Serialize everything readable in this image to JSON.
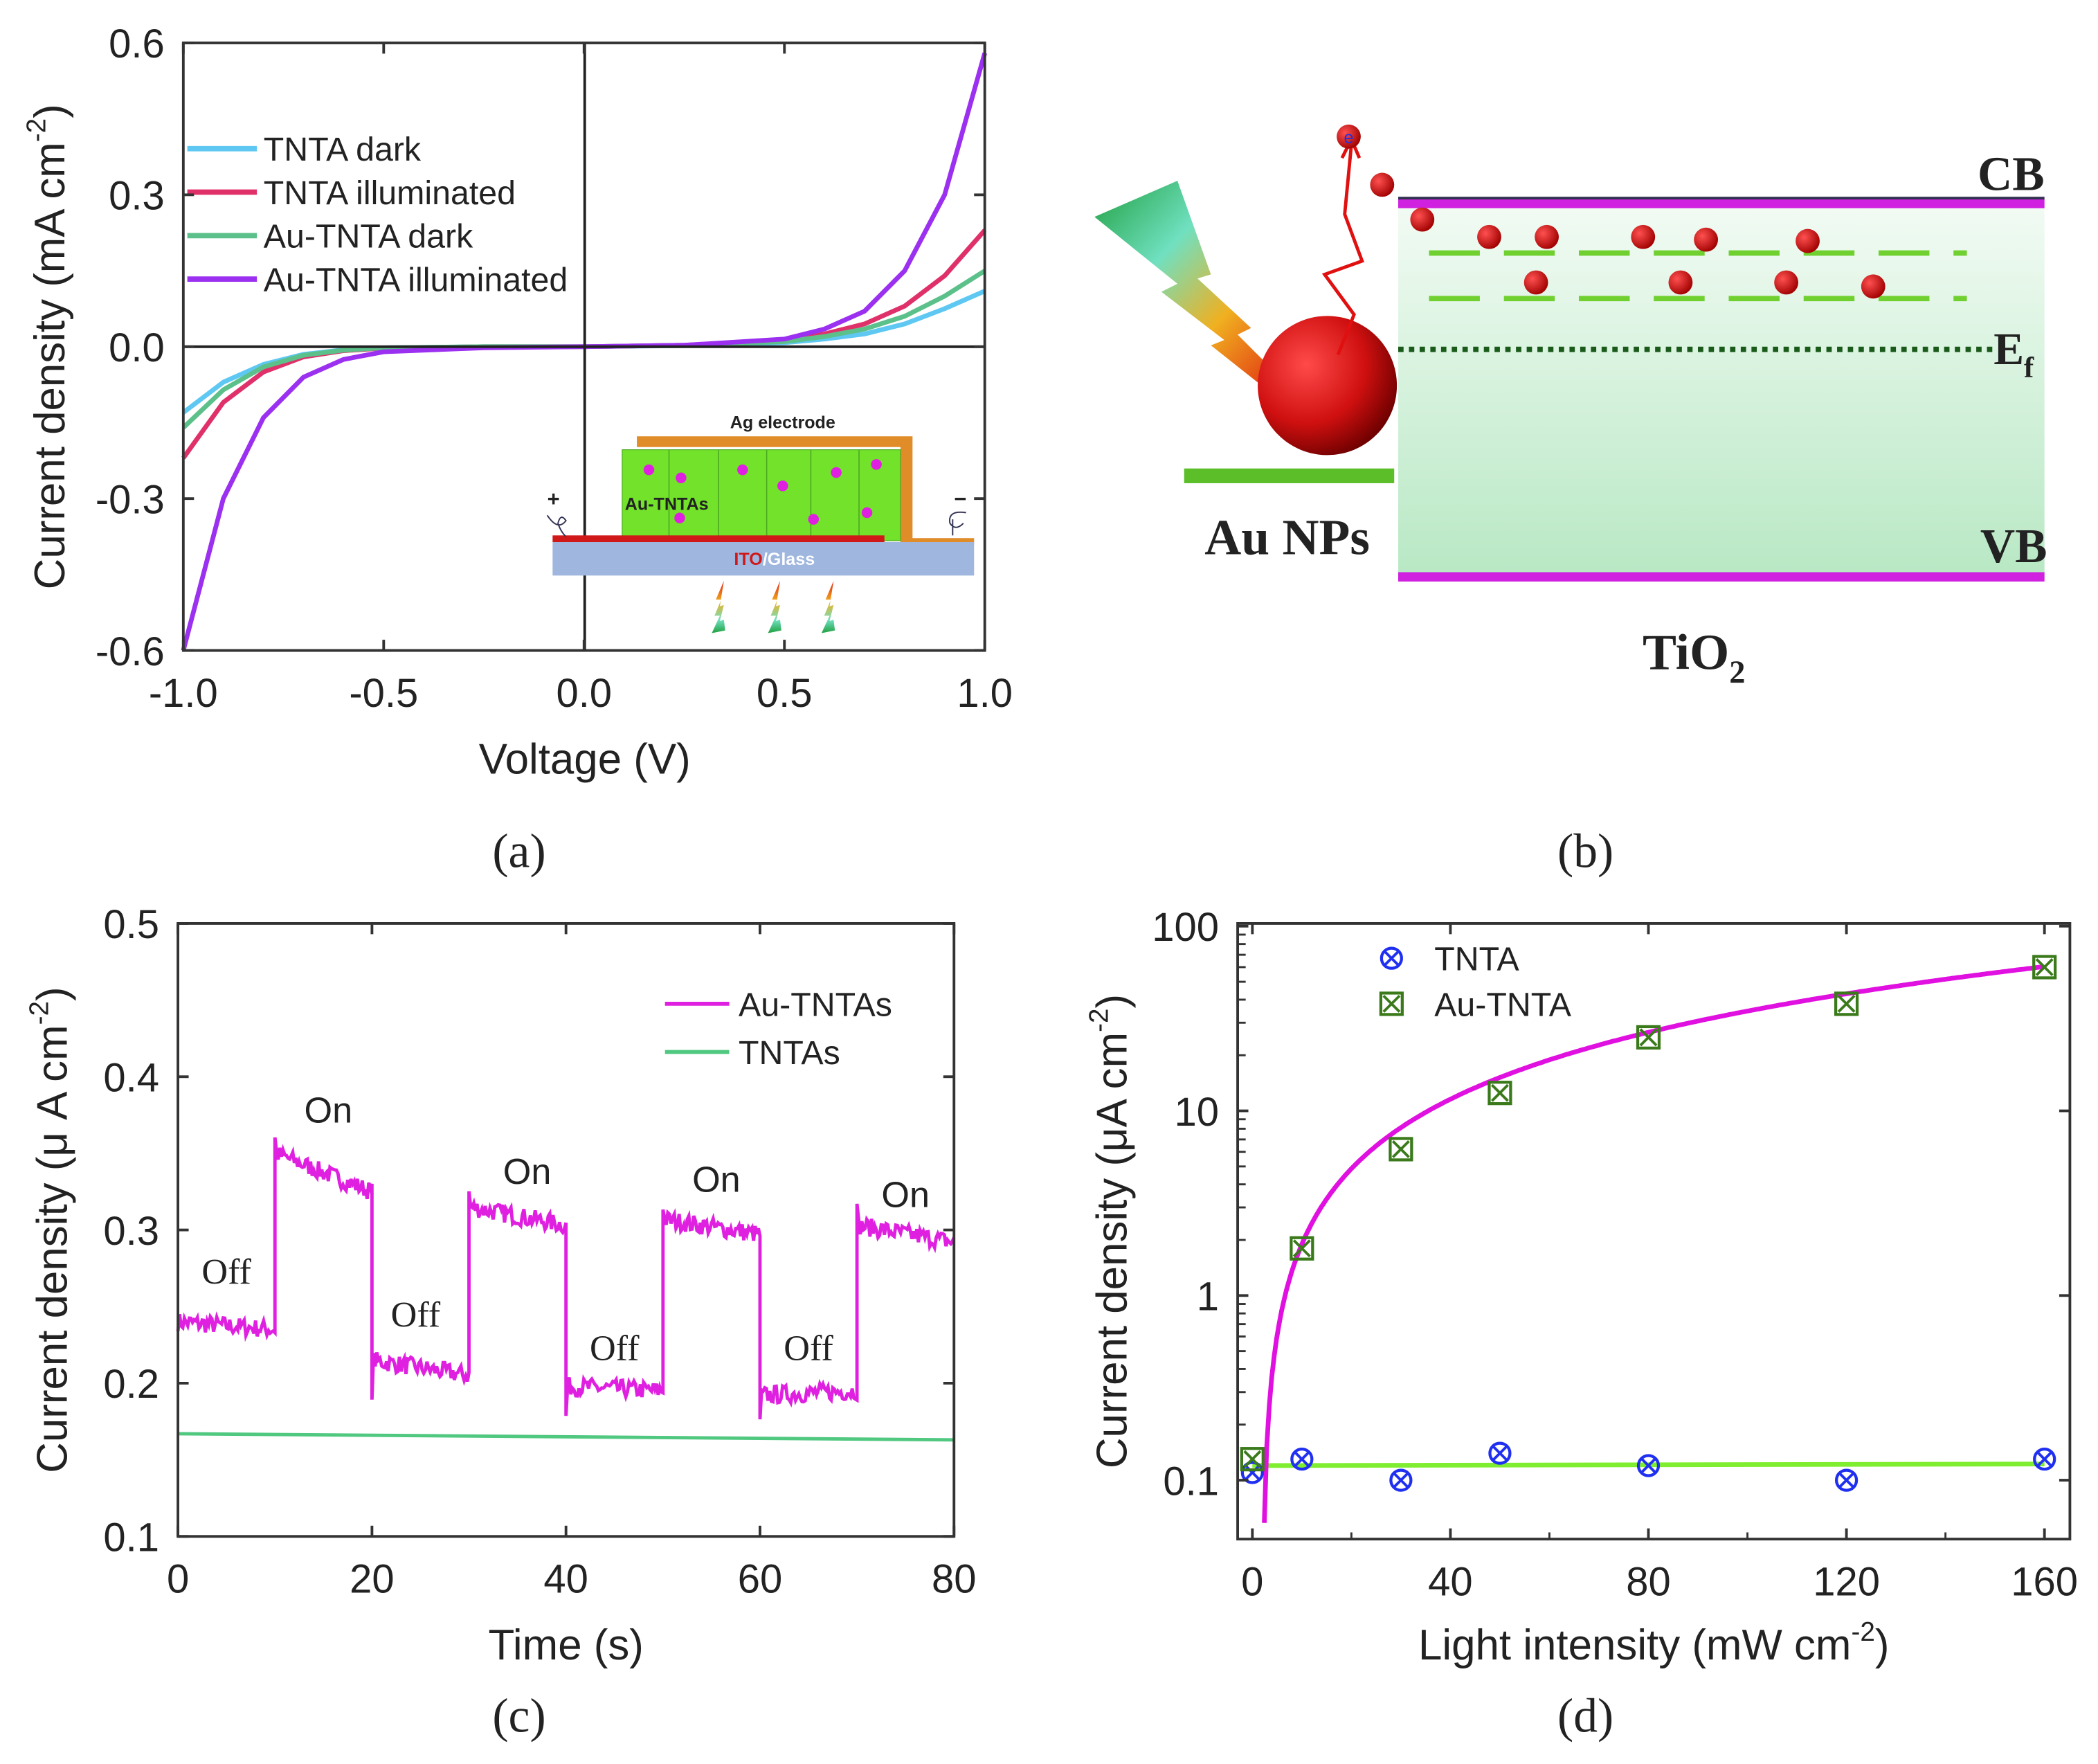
{
  "captions": {
    "a": "(a)",
    "b": "(b)",
    "c": "(c)",
    "d": "(d)"
  },
  "chart_data": [
    {
      "panel": "a",
      "type": "line",
      "xlabel": "Voltage (V)",
      "ylabel": {
        "main": "Current density (mA cm",
        "sup": "-2",
        "end": ")"
      },
      "xlim": [
        -1.0,
        1.0
      ],
      "ylim": [
        -0.6,
        0.6
      ],
      "xticks": [
        "-1.0",
        "-0.5",
        "0.0",
        "0.5",
        "1.0"
      ],
      "yticks": [
        "0.6",
        "0.3",
        "0.0",
        "-0.3",
        "-0.6"
      ],
      "legend_position": "top-left",
      "x": [
        -1.0,
        -0.9,
        -0.8,
        -0.7,
        -0.6,
        -0.5,
        -0.25,
        0,
        0.25,
        0.5,
        0.6,
        0.7,
        0.8,
        0.9,
        1.0
      ],
      "series": [
        {
          "name": "TNTA dark",
          "color": "#5ec8f2",
          "values": [
            -0.13,
            -0.07,
            -0.035,
            -0.015,
            -0.006,
            -0.002,
            0,
            0,
            0.002,
            0.008,
            0.015,
            0.025,
            0.045,
            0.075,
            0.11
          ]
        },
        {
          "name": "TNTA illuminated",
          "color": "#e0306a",
          "values": [
            -0.22,
            -0.11,
            -0.05,
            -0.02,
            -0.008,
            -0.003,
            0,
            0,
            0.003,
            0.012,
            0.025,
            0.045,
            0.08,
            0.14,
            0.23
          ]
        },
        {
          "name": "Au-TNTA dark",
          "color": "#5cc08a",
          "values": [
            -0.16,
            -0.085,
            -0.04,
            -0.017,
            -0.007,
            -0.002,
            0,
            0,
            0.003,
            0.01,
            0.02,
            0.035,
            0.06,
            0.1,
            0.15
          ]
        },
        {
          "name": "Au-TNTA illuminated",
          "color": "#9b30f0",
          "values": [
            -0.6,
            -0.3,
            -0.14,
            -0.06,
            -0.025,
            -0.01,
            -0.002,
            0,
            0.003,
            0.015,
            0.035,
            0.07,
            0.15,
            0.3,
            0.58
          ]
        }
      ],
      "inset": {
        "electrode": "Ag electrode",
        "film": "Au-TNTAs",
        "substrate_ito": "ITO",
        "substrate_glass": "/Glass",
        "plus": "+",
        "minus": "−"
      }
    },
    {
      "panel": "c",
      "type": "line",
      "xlabel": "Time (s)",
      "ylabel": {
        "main": "Current density (μ A cm",
        "sup": "-2",
        "end": ")"
      },
      "xlim": [
        0,
        80
      ],
      "ylim": [
        0.1,
        0.5
      ],
      "xticks": [
        "0",
        "20",
        "40",
        "60",
        "80"
      ],
      "yticks": [
        "0.5",
        "0.4",
        "0.3",
        "0.2",
        "0.1"
      ],
      "legend_position": "top-right",
      "series": [
        {
          "name": "Au-TNTAs",
          "color": "#e020e0",
          "segments": [
            {
              "t": [
                0,
                10
              ],
              "y": [
                0.24,
                0.235
              ]
            },
            {
              "t": [
                10,
                20
              ],
              "y": [
                0.35,
                0.325
              ]
            },
            {
              "t": [
                20,
                30
              ],
              "y": [
                0.215,
                0.205
              ]
            },
            {
              "t": [
                30,
                40
              ],
              "y": [
                0.315,
                0.303
              ]
            },
            {
              "t": [
                40,
                50
              ],
              "y": [
                0.198,
                0.195
              ]
            },
            {
              "t": [
                50,
                60
              ],
              "y": [
                0.307,
                0.297
              ]
            },
            {
              "t": [
                60,
                70
              ],
              "y": [
                0.192,
                0.195
              ]
            },
            {
              "t": [
                70,
                80
              ],
              "y": [
                0.303,
                0.292
              ]
            }
          ]
        },
        {
          "name": "TNTAs",
          "color": "#50c880",
          "x": [
            0,
            80
          ],
          "values": [
            0.167,
            0.163
          ]
        }
      ],
      "annotations": [
        {
          "text": "Off",
          "x": 5,
          "y": 0.265
        },
        {
          "text": "On",
          "x": 15.5,
          "y": 0.37
        },
        {
          "text": "Off",
          "x": 24.5,
          "y": 0.237
        },
        {
          "text": "On",
          "x": 36,
          "y": 0.33
        },
        {
          "text": "Off",
          "x": 45,
          "y": 0.215
        },
        {
          "text": "On",
          "x": 55.5,
          "y": 0.325
        },
        {
          "text": "Off",
          "x": 65,
          "y": 0.215
        },
        {
          "text": "On",
          "x": 75,
          "y": 0.315
        }
      ]
    },
    {
      "panel": "d",
      "type": "scatter",
      "xlabel": {
        "main": "Light intensity (mW cm",
        "sup": "-2",
        "end": ")"
      },
      "ylabel": {
        "main": "Current density (μA cm",
        "sup": "-2",
        "end": ")"
      },
      "xlim": [
        0,
        160
      ],
      "ylim": [
        0.05,
        100
      ],
      "yscale": "log",
      "xticks": [
        "0",
        "40",
        "80",
        "120",
        "160"
      ],
      "yticks": [
        "100",
        "10",
        "1",
        "0.1"
      ],
      "legend_position": "top-left",
      "x": [
        0,
        10,
        30,
        50,
        80,
        120,
        160
      ],
      "series": [
        {
          "name": "TNTA",
          "color": "#2030f0",
          "marker": "circle-x",
          "values": [
            0.11,
            0.13,
            0.1,
            0.14,
            0.12,
            0.1,
            0.13
          ],
          "fit_color": "#80ee30",
          "fit": 0.12
        },
        {
          "name": "Au-TNTA",
          "color": "#3a7a1a",
          "marker": "square-x",
          "values": [
            0.13,
            1.8,
            6.2,
            12.5,
            25,
            38,
            60
          ],
          "fit_color": "#e010e0"
        }
      ]
    }
  ],
  "diagram": {
    "cb": "CB",
    "vb": "VB",
    "ef": "E",
    "ef_sub": "f",
    "au_nps": "Au NPs",
    "tio2": "TiO",
    "tio2_sub": "2",
    "electron": "e"
  }
}
